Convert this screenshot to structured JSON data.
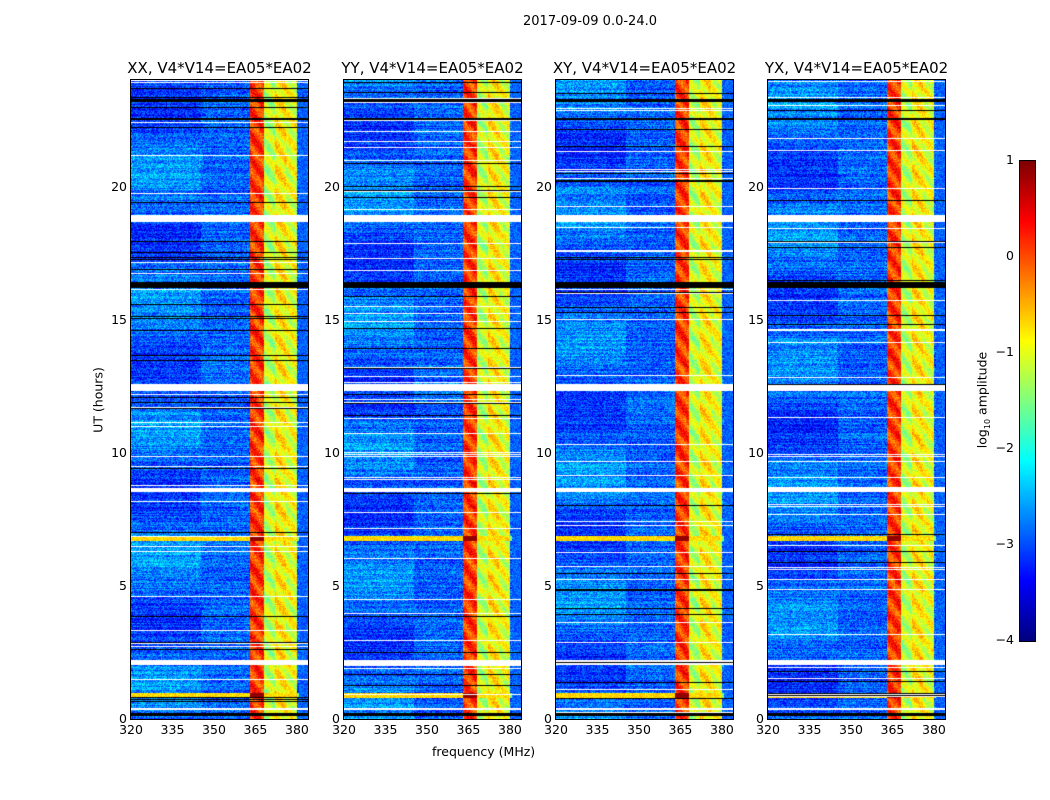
{
  "chart_data": {
    "type": "heatmap",
    "title": "2017-09-09 0.0-24.0",
    "xlabel": "frequency (MHz)",
    "ylabel": "UT (hours)",
    "xlim": [
      320,
      384
    ],
    "ylim": [
      0,
      24
    ],
    "xticks": [
      "320",
      "335",
      "350",
      "365",
      "380"
    ],
    "xtick_values": [
      320,
      335,
      350,
      365,
      380
    ],
    "yticks": [
      "0",
      "5",
      "10",
      "15",
      "20"
    ],
    "ytick_values": [
      0,
      5,
      10,
      15,
      20
    ],
    "panels": [
      {
        "title": "XX, V4*V14=EA05*EA02"
      },
      {
        "title": "YY, V4*V14=EA05*EA02"
      },
      {
        "title": "XY, V4*V14=EA05*EA02"
      },
      {
        "title": "YX, V4*V14=EA05*EA02"
      }
    ],
    "colorbar": {
      "label_main": "log",
      "label_sub": "10",
      "label_rest": " amplitude",
      "range": [
        -4,
        1
      ],
      "ticks": [
        "1",
        "0",
        "−1",
        "−2",
        "−3",
        "−4"
      ],
      "tick_values": [
        1,
        0,
        -1,
        -2,
        -3,
        -4
      ],
      "colormap": "jet"
    },
    "rfi_bands_mhz": [
      {
        "range": [
          363,
          368
        ],
        "log_amp": 0.1
      },
      {
        "range": [
          368,
          372
        ],
        "log_amp": -1.2
      },
      {
        "range": [
          372,
          376
        ],
        "log_amp": -0.8
      },
      {
        "range": [
          376,
          380
        ],
        "log_amp": -1.0
      }
    ],
    "background_log_amp": -2.9,
    "flagged_hours": [
      [
        0.35,
        0.45
      ],
      [
        2.05,
        2.25
      ],
      [
        8.55,
        8.7
      ],
      [
        12.35,
        12.6
      ],
      [
        18.7,
        18.95
      ]
    ],
    "dark_hours": [
      [
        0.15,
        0.25
      ],
      [
        16.2,
        16.45
      ],
      [
        22.5,
        22.6
      ],
      [
        23.2,
        23.3
      ]
    ],
    "bright_events_hours": [
      [
        6.7,
        6.9
      ],
      [
        0.8,
        1.0
      ]
    ]
  }
}
